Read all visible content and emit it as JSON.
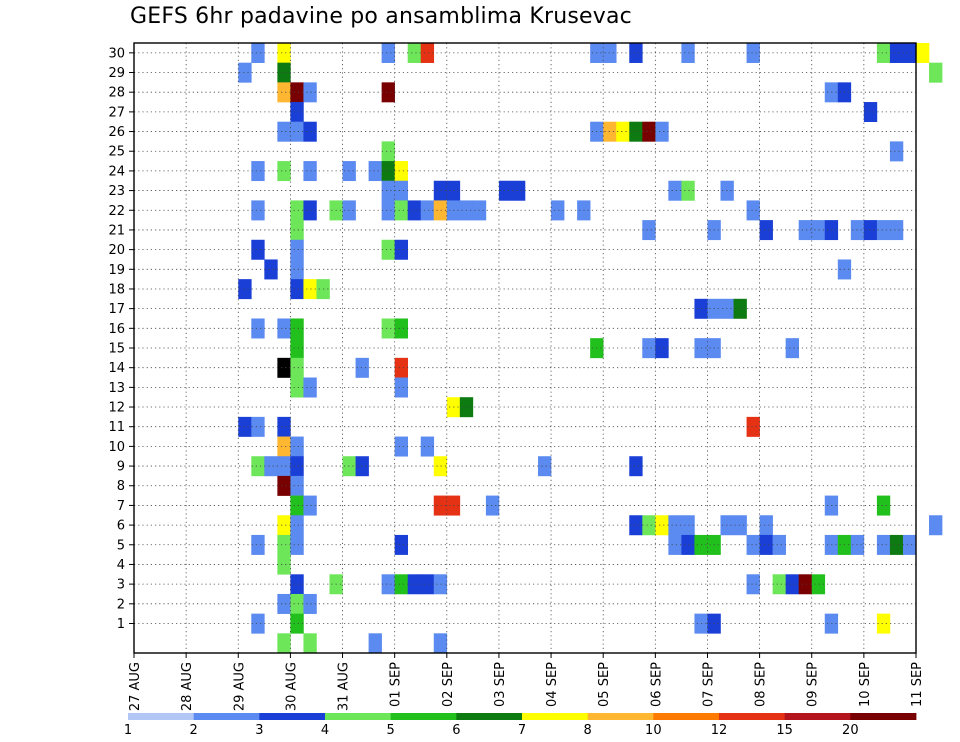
{
  "chart_data": {
    "type": "heatmap",
    "title": "GEFS 6hr padavine po ansamblima Krusevac",
    "xlabel": "",
    "ylabel": "",
    "x_ticks": [
      "27 AUG",
      "28 AUG",
      "29 AUG",
      "30 AUG",
      "31 AUG",
      "01 SEP",
      "02 SEP",
      "03 SEP",
      "04 SEP",
      "05 SEP",
      "06 SEP",
      "07 SEP",
      "08 SEP",
      "09 SEP",
      "10 SEP",
      "11 SEP"
    ],
    "xlim_steps": [
      0,
      60
    ],
    "y_ticks": [
      1,
      2,
      3,
      4,
      5,
      6,
      7,
      8,
      9,
      10,
      11,
      12,
      13,
      14,
      15,
      16,
      17,
      18,
      19,
      20,
      21,
      22,
      23,
      24,
      25,
      26,
      27,
      28,
      29,
      30
    ],
    "ylim": [
      0,
      30
    ],
    "x_unit": "6hr step since 27 AUG 00Z",
    "grid": true,
    "colorbar": {
      "labels": [
        "1",
        "2",
        "3",
        "4",
        "5",
        "6",
        "7",
        "8",
        "10",
        "12",
        "15",
        "20"
      ],
      "colors": [
        "#b3c7f7",
        "#5b8af0",
        "#1a3fd6",
        "#6ee65a",
        "#22c01c",
        "#0e7a12",
        "#ffff00",
        "#ffb732",
        "#ff7a00",
        "#e63214",
        "#b4141e",
        "#780000"
      ]
    },
    "cells": [
      [
        9,
        30,
        1
      ],
      [
        11,
        30,
        6
      ],
      [
        19,
        30,
        1
      ],
      [
        21,
        30,
        3
      ],
      [
        22,
        30,
        9
      ],
      [
        35,
        30,
        1
      ],
      [
        36,
        30,
        1
      ],
      [
        38,
        30,
        2
      ],
      [
        42,
        30,
        1
      ],
      [
        47,
        30,
        1
      ],
      [
        57,
        30,
        3
      ],
      [
        58,
        30,
        2
      ],
      [
        59,
        30,
        2
      ],
      [
        60,
        30,
        6
      ],
      [
        8,
        29,
        1
      ],
      [
        11,
        29,
        5
      ],
      [
        61,
        29,
        3
      ],
      [
        11,
        28,
        7
      ],
      [
        12,
        28,
        11
      ],
      [
        13,
        28,
        1
      ],
      [
        19,
        28,
        11
      ],
      [
        53,
        28,
        1
      ],
      [
        54,
        28,
        2
      ],
      [
        12,
        27,
        2
      ],
      [
        56,
        27,
        2
      ],
      [
        11,
        26,
        1
      ],
      [
        12,
        26,
        1
      ],
      [
        13,
        26,
        2
      ],
      [
        35,
        26,
        1
      ],
      [
        36,
        26,
        7
      ],
      [
        37,
        26,
        6
      ],
      [
        38,
        26,
        5
      ],
      [
        39,
        26,
        11
      ],
      [
        40,
        26,
        1
      ],
      [
        19,
        25,
        3
      ],
      [
        58,
        25,
        1
      ],
      [
        9,
        24,
        1
      ],
      [
        11,
        24,
        3
      ],
      [
        13,
        24,
        1
      ],
      [
        16,
        24,
        1
      ],
      [
        18,
        24,
        1
      ],
      [
        19,
        24,
        5
      ],
      [
        20,
        24,
        6
      ],
      [
        19,
        23,
        1
      ],
      [
        20,
        23,
        1
      ],
      [
        23,
        23,
        2
      ],
      [
        24,
        23,
        2
      ],
      [
        28,
        23,
        2
      ],
      [
        29,
        23,
        2
      ],
      [
        41,
        23,
        1
      ],
      [
        42,
        23,
        3
      ],
      [
        45,
        23,
        1
      ],
      [
        9,
        22,
        1
      ],
      [
        12,
        22,
        3
      ],
      [
        13,
        22,
        2
      ],
      [
        15,
        22,
        3
      ],
      [
        16,
        22,
        1
      ],
      [
        19,
        22,
        1
      ],
      [
        20,
        22,
        3
      ],
      [
        21,
        22,
        2
      ],
      [
        22,
        22,
        1
      ],
      [
        23,
        22,
        7
      ],
      [
        24,
        22,
        1
      ],
      [
        25,
        22,
        1
      ],
      [
        26,
        22,
        1
      ],
      [
        32,
        22,
        1
      ],
      [
        34,
        22,
        1
      ],
      [
        47,
        22,
        1
      ],
      [
        12,
        21,
        3
      ],
      [
        39,
        21,
        1
      ],
      [
        44,
        21,
        1
      ],
      [
        48,
        21,
        2
      ],
      [
        51,
        21,
        1
      ],
      [
        52,
        21,
        1
      ],
      [
        53,
        21,
        2
      ],
      [
        55,
        21,
        1
      ],
      [
        56,
        21,
        2
      ],
      [
        57,
        21,
        1
      ],
      [
        58,
        21,
        1
      ],
      [
        9,
        20,
        2
      ],
      [
        12,
        20,
        1
      ],
      [
        19,
        20,
        3
      ],
      [
        20,
        20,
        2
      ],
      [
        10,
        19,
        2
      ],
      [
        12,
        19,
        1
      ],
      [
        54,
        19,
        1
      ],
      [
        8,
        18,
        2
      ],
      [
        12,
        18,
        2
      ],
      [
        13,
        18,
        6
      ],
      [
        14,
        18,
        3
      ],
      [
        43,
        17,
        2
      ],
      [
        44,
        17,
        1
      ],
      [
        45,
        17,
        1
      ],
      [
        46,
        17,
        5
      ],
      [
        9,
        16,
        1
      ],
      [
        11,
        16,
        1
      ],
      [
        12,
        16,
        4
      ],
      [
        19,
        16,
        3
      ],
      [
        20,
        16,
        4
      ],
      [
        12,
        15,
        4
      ],
      [
        35,
        15,
        4
      ],
      [
        39,
        15,
        1
      ],
      [
        40,
        15,
        2
      ],
      [
        43,
        15,
        1
      ],
      [
        44,
        15,
        1
      ],
      [
        50,
        15,
        1
      ],
      [
        11,
        14,
        12
      ],
      [
        12,
        14,
        3
      ],
      [
        17,
        14,
        1
      ],
      [
        20,
        14,
        9
      ],
      [
        12,
        13,
        3
      ],
      [
        13,
        13,
        1
      ],
      [
        20,
        13,
        1
      ],
      [
        24,
        12,
        6
      ],
      [
        25,
        12,
        5
      ],
      [
        8,
        11,
        2
      ],
      [
        9,
        11,
        1
      ],
      [
        11,
        11,
        2
      ],
      [
        47,
        11,
        9
      ],
      [
        11,
        10,
        7
      ],
      [
        12,
        10,
        1
      ],
      [
        20,
        10,
        1
      ],
      [
        22,
        10,
        1
      ],
      [
        9,
        9,
        3
      ],
      [
        10,
        9,
        1
      ],
      [
        11,
        9,
        1
      ],
      [
        12,
        9,
        2
      ],
      [
        16,
        9,
        3
      ],
      [
        17,
        9,
        2
      ],
      [
        23,
        9,
        6
      ],
      [
        31,
        9,
        1
      ],
      [
        38,
        9,
        2
      ],
      [
        11,
        8,
        11
      ],
      [
        12,
        8,
        1
      ],
      [
        12,
        7,
        4
      ],
      [
        13,
        7,
        1
      ],
      [
        23,
        7,
        9
      ],
      [
        24,
        7,
        9
      ],
      [
        27,
        7,
        1
      ],
      [
        53,
        7,
        1
      ],
      [
        57,
        7,
        4
      ],
      [
        11,
        6,
        6
      ],
      [
        12,
        6,
        1
      ],
      [
        38,
        6,
        2
      ],
      [
        39,
        6,
        3
      ],
      [
        40,
        6,
        6
      ],
      [
        41,
        6,
        1
      ],
      [
        42,
        6,
        1
      ],
      [
        45,
        6,
        1
      ],
      [
        46,
        6,
        1
      ],
      [
        48,
        6,
        1
      ],
      [
        61,
        6,
        1
      ],
      [
        9,
        5,
        1
      ],
      [
        11,
        5,
        3
      ],
      [
        12,
        5,
        1
      ],
      [
        20,
        5,
        2
      ],
      [
        41,
        5,
        1
      ],
      [
        42,
        5,
        2
      ],
      [
        43,
        5,
        4
      ],
      [
        44,
        5,
        4
      ],
      [
        47,
        5,
        1
      ],
      [
        48,
        5,
        2
      ],
      [
        49,
        5,
        1
      ],
      [
        53,
        5,
        1
      ],
      [
        54,
        5,
        4
      ],
      [
        55,
        5,
        1
      ],
      [
        57,
        5,
        1
      ],
      [
        58,
        5,
        5
      ],
      [
        59,
        5,
        1
      ],
      [
        11,
        4,
        3
      ],
      [
        12,
        3,
        2
      ],
      [
        15,
        3,
        3
      ],
      [
        19,
        3,
        1
      ],
      [
        20,
        3,
        4
      ],
      [
        21,
        3,
        2
      ],
      [
        22,
        3,
        2
      ],
      [
        23,
        3,
        1
      ],
      [
        47,
        3,
        1
      ],
      [
        49,
        3,
        3
      ],
      [
        50,
        3,
        2
      ],
      [
        51,
        3,
        11
      ],
      [
        52,
        3,
        4
      ],
      [
        11,
        2,
        1
      ],
      [
        12,
        2,
        3
      ],
      [
        13,
        2,
        1
      ],
      [
        9,
        1,
        1
      ],
      [
        12,
        1,
        4
      ],
      [
        43,
        1,
        1
      ],
      [
        44,
        1,
        2
      ],
      [
        53,
        1,
        1
      ],
      [
        57,
        1,
        6
      ],
      [
        11,
        0,
        3
      ],
      [
        13,
        0,
        3
      ],
      [
        18,
        0,
        1
      ],
      [
        23,
        0,
        1
      ]
    ]
  }
}
